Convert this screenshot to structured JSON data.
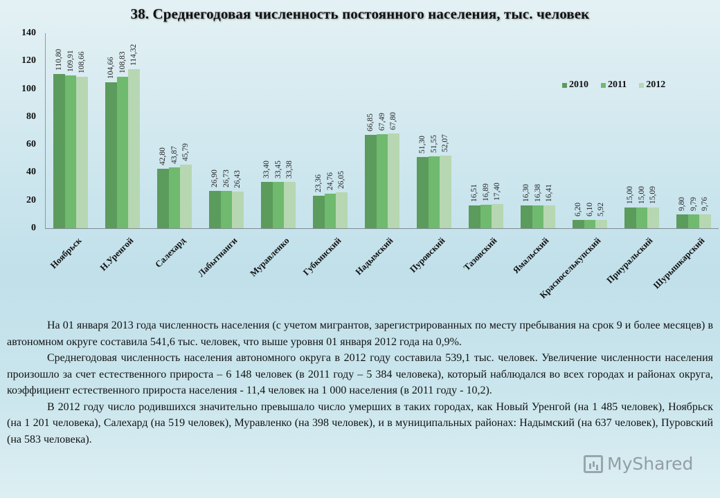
{
  "title": "38. Среднегодовая численность постоянного населения, тыс. человек",
  "chart_data": {
    "type": "bar",
    "title": "38. Среднегодовая численность постоянного населения, тыс. человек",
    "xlabel": "",
    "ylabel": "",
    "ylim": [
      0,
      140
    ],
    "yticks": [
      "0",
      "20",
      "40",
      "60",
      "80",
      "100",
      "120",
      "140"
    ],
    "grid": false,
    "legend_position": "upper right",
    "categories": [
      "Ноябрьск",
      "Н.Уренгой",
      "Салехард",
      "Лабытнанги",
      "Муравленко",
      "Губкинский",
      "Надымский",
      "Пуровский",
      "Тазовский",
      "Ямальский",
      "Красноселькупский",
      "Приуральский",
      "Шурышкарский"
    ],
    "series": [
      {
        "name": "2010",
        "color": "#5b9b5c",
        "values": [
          110.8,
          104.66,
          42.8,
          26.9,
          33.4,
          23.36,
          66.85,
          51.3,
          16.51,
          16.3,
          6.2,
          15.0,
          9.8
        ],
        "labels": [
          "110,80",
          "104,66",
          "42,80",
          "26,90",
          "33,40",
          "23,36",
          "66,85",
          "51,30",
          "16,51",
          "16,30",
          "6,20",
          "15,00",
          "9,80"
        ]
      },
      {
        "name": "2011",
        "color": "#6fba6e",
        "values": [
          109.91,
          108.83,
          43.87,
          26.73,
          33.45,
          24.76,
          67.49,
          51.55,
          16.89,
          16.38,
          6.1,
          15.0,
          9.79
        ],
        "labels": [
          "109,91",
          "108,83",
          "43,87",
          "26,73",
          "33,45",
          "24,76",
          "67,49",
          "51,55",
          "16,89",
          "16,38",
          "6,10",
          "15,00",
          "9,79"
        ]
      },
      {
        "name": "2012",
        "color": "#b6d7b2",
        "values": [
          108.66,
          114.32,
          45.79,
          26.43,
          33.38,
          26.05,
          67.8,
          52.07,
          17.4,
          16.41,
          5.92,
          15.09,
          9.76
        ],
        "labels": [
          "108,66",
          "114,32",
          "45,79",
          "26,43",
          "33,38",
          "26,05",
          "67,80",
          "52,07",
          "17,40",
          "16,41",
          "5,92",
          "15,09",
          "9,76"
        ]
      }
    ]
  },
  "paragraphs": [
    "На 01 января 2013 года численность населения (с учетом мигрантов, зарегистрированных по месту пребывания на срок 9 и более месяцев) в автономном округе составила 541,6 тыс. человек, что выше уровня 01 января 2012 года на 0,9%.",
    "Среднегодовая численность населения автономного округа в 2012 году составила 539,1 тыс. человек. Увеличение численности населения произошло за счет естественного прироста – 6 148 человек (в 2011 году – 5 384 человека), который наблюдался во всех городах и районах округа, коэффициент естественного прироста населения - 11,4 человек на 1 000 населения (в 2011 году - 10,2).",
    "В 2012 году число родившихся значительно превышало число умерших в таких городах, как Новый Уренгой (на 1 485 человек), Ноябрьск (на 1 201 человека), Салехард (на 519 человек), Муравленко (на 398 человек), и в муниципальных районах: Надымский (на 637 человек), Пуровский (на 583 человека)."
  ],
  "watermark": "MyShared"
}
